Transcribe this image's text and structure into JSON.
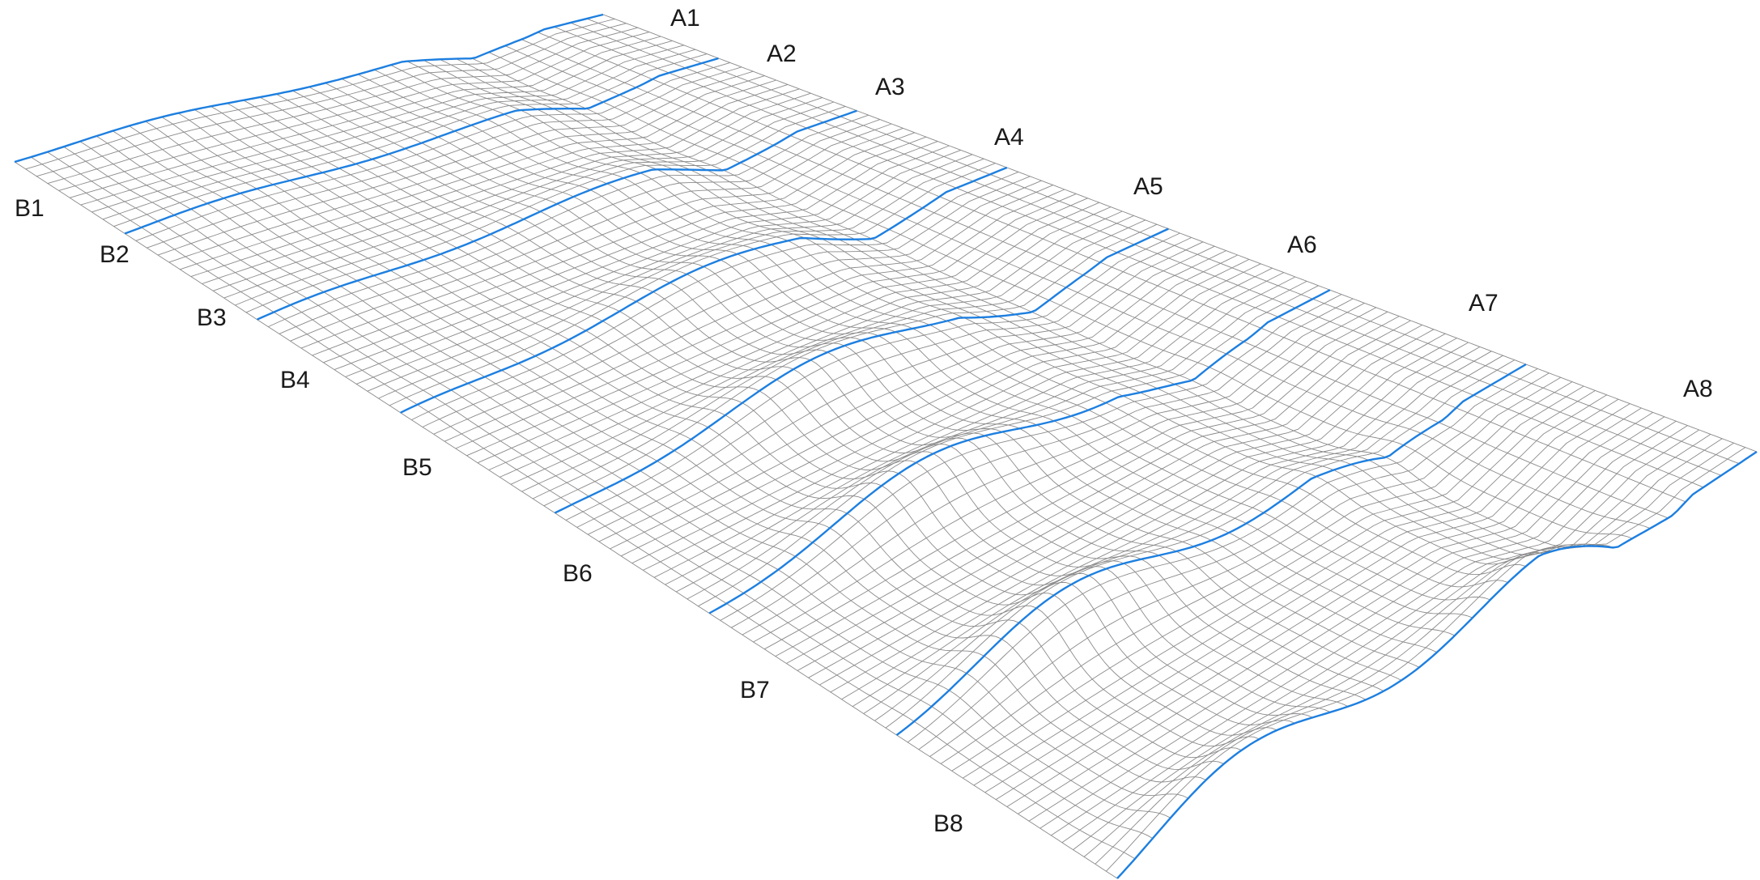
{
  "figure": {
    "a_labels": [
      "A1",
      "A2",
      "A3",
      "A4",
      "A5",
      "A6",
      "A7",
      "A8"
    ],
    "b_labels": [
      "B1",
      "B2",
      "B3",
      "B4",
      "B5",
      "B6",
      "B7",
      "B8"
    ]
  },
  "colors": {
    "mesh": "#8a8a8a",
    "highlight": "#1d7fe0",
    "label": "#1a1a1a",
    "background": "#ffffff"
  }
}
